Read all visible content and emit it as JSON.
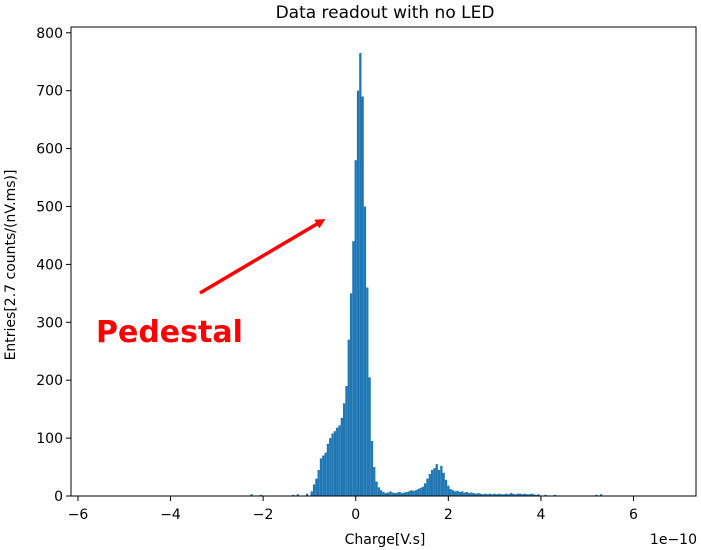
{
  "chart_data": {
    "type": "bar",
    "title": "Data readout with no LED",
    "xlabel": "Charge[V.s]",
    "ylabel": "Entries[2.7 counts/(nV.ms)]",
    "x_scale_label": "1e−10",
    "xlim": [
      -6.15,
      7.35
    ],
    "ylim": [
      0,
      810
    ],
    "x_ticks": [
      -6,
      -4,
      -2,
      0,
      2,
      4,
      6
    ],
    "x_tick_labels": [
      "−6",
      "−4",
      "−2",
      "0",
      "2",
      "4",
      "6"
    ],
    "y_ticks": [
      0,
      100,
      200,
      300,
      400,
      500,
      600,
      700,
      800
    ],
    "y_tick_labels": [
      "0",
      "100",
      "200",
      "300",
      "400",
      "500",
      "600",
      "700",
      "800"
    ],
    "grid": false,
    "bar_color": "#1f77b4",
    "annotation": {
      "text": "Pedestal",
      "color": "#ff0000"
    },
    "bins": [
      {
        "x": -2.25,
        "y": 3
      },
      {
        "x": -2.05,
        "y": 2
      },
      {
        "x": -1.35,
        "y": 2
      },
      {
        "x": -1.25,
        "y": 3
      },
      {
        "x": -1.05,
        "y": 4
      },
      {
        "x": -0.95,
        "y": 8
      },
      {
        "x": -0.9,
        "y": 20
      },
      {
        "x": -0.85,
        "y": 30
      },
      {
        "x": -0.8,
        "y": 45
      },
      {
        "x": -0.75,
        "y": 65
      },
      {
        "x": -0.7,
        "y": 70
      },
      {
        "x": -0.65,
        "y": 75
      },
      {
        "x": -0.6,
        "y": 90
      },
      {
        "x": -0.55,
        "y": 100
      },
      {
        "x": -0.5,
        "y": 108
      },
      {
        "x": -0.45,
        "y": 112
      },
      {
        "x": -0.4,
        "y": 118
      },
      {
        "x": -0.35,
        "y": 122
      },
      {
        "x": -0.3,
        "y": 135
      },
      {
        "x": -0.25,
        "y": 160
      },
      {
        "x": -0.2,
        "y": 190
      },
      {
        "x": -0.15,
        "y": 270
      },
      {
        "x": -0.1,
        "y": 350
      },
      {
        "x": -0.05,
        "y": 440
      },
      {
        "x": 0.0,
        "y": 580
      },
      {
        "x": 0.05,
        "y": 700
      },
      {
        "x": 0.1,
        "y": 765
      },
      {
        "x": 0.15,
        "y": 690
      },
      {
        "x": 0.2,
        "y": 500
      },
      {
        "x": 0.25,
        "y": 360
      },
      {
        "x": 0.3,
        "y": 205
      },
      {
        "x": 0.35,
        "y": 95
      },
      {
        "x": 0.4,
        "y": 50
      },
      {
        "x": 0.45,
        "y": 25
      },
      {
        "x": 0.5,
        "y": 15
      },
      {
        "x": 0.55,
        "y": 10
      },
      {
        "x": 0.6,
        "y": 7
      },
      {
        "x": 0.65,
        "y": 5
      },
      {
        "x": 0.7,
        "y": 6
      },
      {
        "x": 0.75,
        "y": 8
      },
      {
        "x": 0.8,
        "y": 6
      },
      {
        "x": 0.85,
        "y": 5
      },
      {
        "x": 0.9,
        "y": 6
      },
      {
        "x": 0.95,
        "y": 7
      },
      {
        "x": 1.0,
        "y": 5
      },
      {
        "x": 1.05,
        "y": 6
      },
      {
        "x": 1.1,
        "y": 7
      },
      {
        "x": 1.15,
        "y": 8
      },
      {
        "x": 1.2,
        "y": 10
      },
      {
        "x": 1.25,
        "y": 9
      },
      {
        "x": 1.3,
        "y": 10
      },
      {
        "x": 1.35,
        "y": 12
      },
      {
        "x": 1.4,
        "y": 14
      },
      {
        "x": 1.45,
        "y": 16
      },
      {
        "x": 1.5,
        "y": 22
      },
      {
        "x": 1.55,
        "y": 30
      },
      {
        "x": 1.6,
        "y": 38
      },
      {
        "x": 1.65,
        "y": 45
      },
      {
        "x": 1.7,
        "y": 48
      },
      {
        "x": 1.75,
        "y": 55
      },
      {
        "x": 1.8,
        "y": 45
      },
      {
        "x": 1.85,
        "y": 52
      },
      {
        "x": 1.9,
        "y": 40
      },
      {
        "x": 1.95,
        "y": 28
      },
      {
        "x": 2.0,
        "y": 18
      },
      {
        "x": 2.05,
        "y": 12
      },
      {
        "x": 2.1,
        "y": 10
      },
      {
        "x": 2.15,
        "y": 8
      },
      {
        "x": 2.2,
        "y": 9
      },
      {
        "x": 2.25,
        "y": 7
      },
      {
        "x": 2.3,
        "y": 8
      },
      {
        "x": 2.35,
        "y": 6
      },
      {
        "x": 2.4,
        "y": 7
      },
      {
        "x": 2.45,
        "y": 5
      },
      {
        "x": 2.5,
        "y": 6
      },
      {
        "x": 2.55,
        "y": 5
      },
      {
        "x": 2.6,
        "y": 4
      },
      {
        "x": 2.65,
        "y": 5
      },
      {
        "x": 2.7,
        "y": 4
      },
      {
        "x": 2.75,
        "y": 3
      },
      {
        "x": 2.8,
        "y": 4
      },
      {
        "x": 2.85,
        "y": 3
      },
      {
        "x": 2.9,
        "y": 4
      },
      {
        "x": 2.95,
        "y": 3
      },
      {
        "x": 3.0,
        "y": 4
      },
      {
        "x": 3.05,
        "y": 3
      },
      {
        "x": 3.1,
        "y": 4
      },
      {
        "x": 3.15,
        "y": 3
      },
      {
        "x": 3.2,
        "y": 3
      },
      {
        "x": 3.25,
        "y": 4
      },
      {
        "x": 3.3,
        "y": 3
      },
      {
        "x": 3.35,
        "y": 5
      },
      {
        "x": 3.4,
        "y": 4
      },
      {
        "x": 3.45,
        "y": 3
      },
      {
        "x": 3.5,
        "y": 4
      },
      {
        "x": 3.55,
        "y": 4
      },
      {
        "x": 3.6,
        "y": 3
      },
      {
        "x": 3.65,
        "y": 4
      },
      {
        "x": 3.7,
        "y": 3
      },
      {
        "x": 3.75,
        "y": 3
      },
      {
        "x": 3.8,
        "y": 4
      },
      {
        "x": 3.85,
        "y": 3
      },
      {
        "x": 3.9,
        "y": 2
      },
      {
        "x": 3.95,
        "y": 3
      },
      {
        "x": 4.1,
        "y": 2
      },
      {
        "x": 4.3,
        "y": 2
      },
      {
        "x": 5.2,
        "y": 2
      },
      {
        "x": 5.3,
        "y": 3
      }
    ]
  }
}
